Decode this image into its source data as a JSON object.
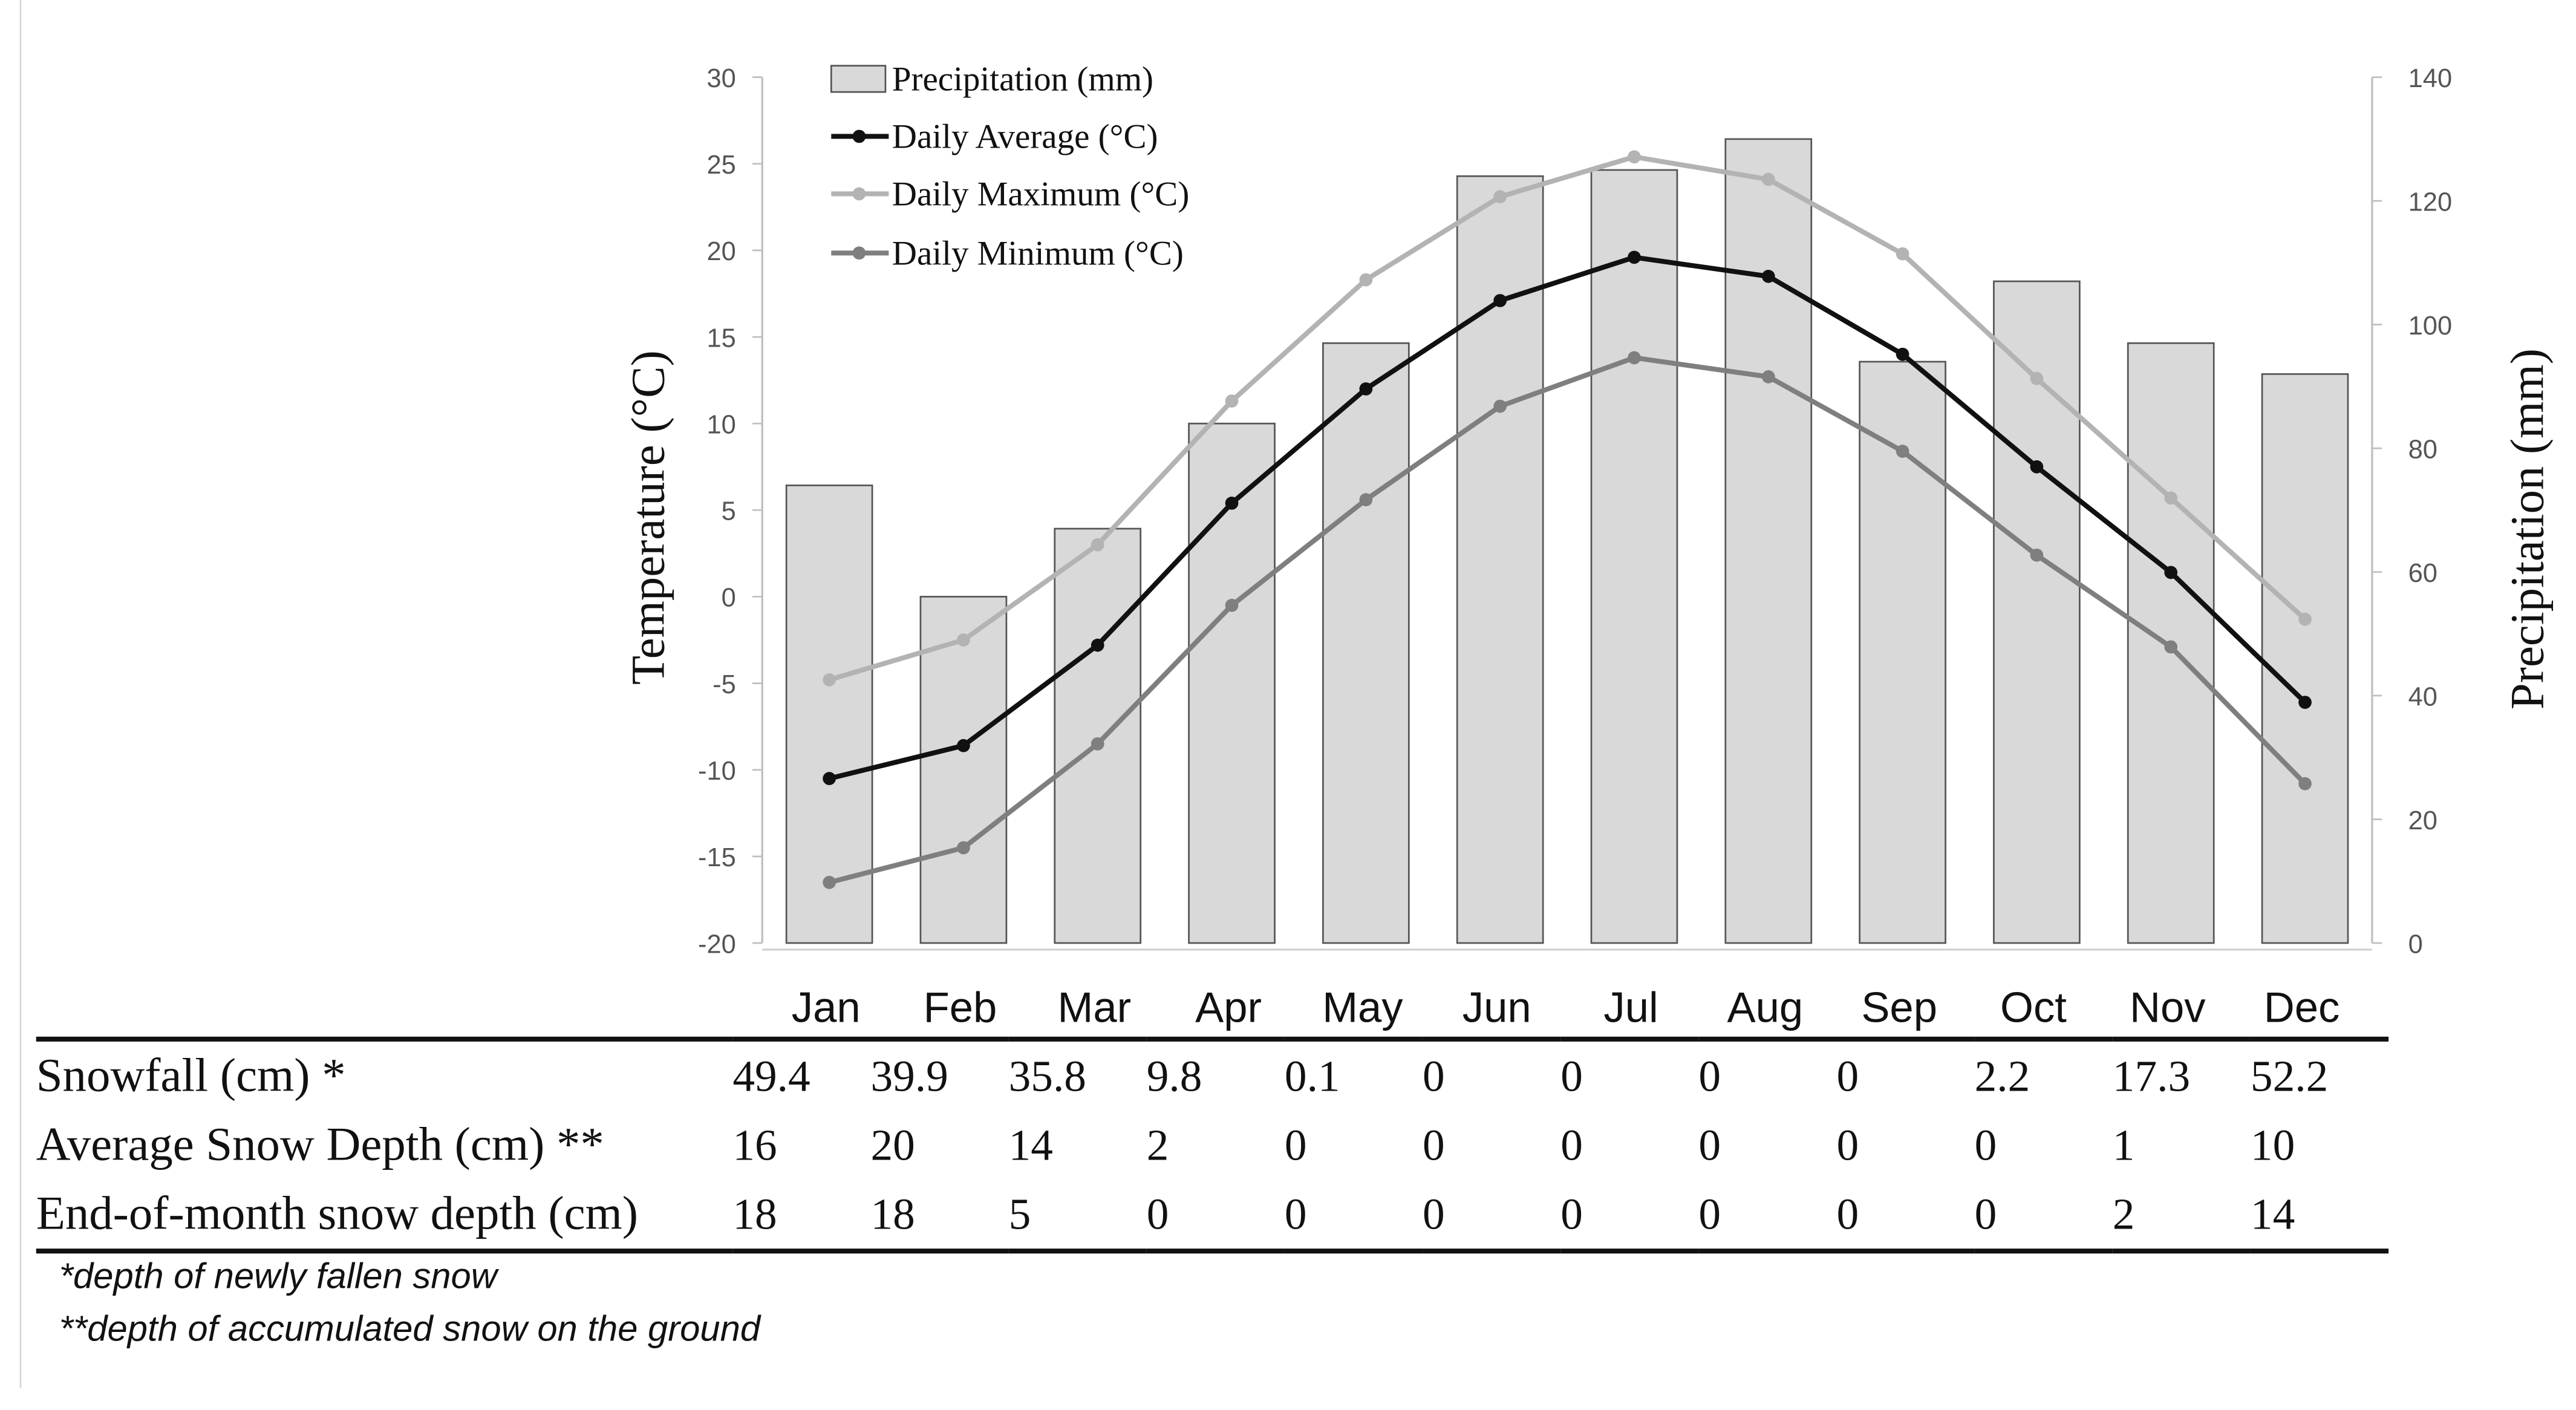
{
  "chart_data": {
    "type": "bar+line",
    "categories": [
      "Jan",
      "Feb",
      "Mar",
      "Apr",
      "May",
      "Jun",
      "Jul",
      "Aug",
      "Sep",
      "Oct",
      "Nov",
      "Dec"
    ],
    "left_axis": {
      "label": "Temperature  (°C)",
      "ylim": [
        -20,
        30
      ],
      "ticks": [
        -20,
        -15,
        -10,
        -5,
        0,
        5,
        10,
        15,
        20,
        25,
        30
      ]
    },
    "right_axis": {
      "label": "Precipitation (mm)",
      "ylim": [
        0,
        140
      ],
      "ticks": [
        0,
        20,
        40,
        60,
        80,
        100,
        120,
        140
      ]
    },
    "bars": {
      "name": "Precipitation (mm)",
      "axis": "right",
      "color": "#d9d9d9",
      "values": [
        74,
        56,
        67,
        84,
        97,
        124,
        125,
        130,
        94,
        107,
        97,
        92
      ]
    },
    "series": [
      {
        "name": "Daily Average (°C)",
        "axis": "left",
        "color": "#111111",
        "values": [
          -10.5,
          -8.6,
          -2.8,
          5.4,
          12.0,
          17.1,
          19.6,
          18.5,
          14.0,
          7.5,
          1.4,
          -6.1
        ]
      },
      {
        "name": "Daily Maximum (°C)",
        "axis": "left",
        "color": "#b3b3b3",
        "values": [
          -4.8,
          -2.5,
          3.0,
          11.3,
          18.3,
          23.1,
          25.4,
          24.1,
          19.8,
          12.6,
          5.7,
          -1.3
        ]
      },
      {
        "name": "Daily Minimum (°C)",
        "axis": "left",
        "color": "#7f7f7f",
        "values": [
          -16.5,
          -14.5,
          -8.5,
          -0.5,
          5.6,
          11.0,
          13.8,
          12.7,
          8.4,
          2.4,
          -2.9,
          -10.8
        ]
      }
    ],
    "legend": [
      "Precipitation (mm)",
      "Daily Average (°C)",
      "Daily Maximum (°C)",
      "Daily Minimum (°C)"
    ]
  },
  "table": {
    "rows": [
      {
        "label": "Snowfall (cm)  *",
        "values": [
          "49.4",
          "39.9",
          "35.8",
          "9.8",
          "0.1",
          "0",
          "0",
          "0",
          "0",
          "2.2",
          "17.3",
          "52.2"
        ]
      },
      {
        "label": "Average Snow Depth (cm)  **",
        "values": [
          "16",
          "20",
          "14",
          "2",
          "0",
          "0",
          "0",
          "0",
          "0",
          "0",
          "1",
          "10"
        ]
      },
      {
        "label": "End-of-month snow depth (cm)",
        "values": [
          "18",
          "18",
          "5",
          "0",
          "0",
          "0",
          "0",
          "0",
          "0",
          "0",
          "2",
          "14"
        ]
      }
    ]
  },
  "footnotes": {
    "f1": "*depth of newly fallen snow",
    "f2": "**depth of accumulated snow on the ground"
  }
}
